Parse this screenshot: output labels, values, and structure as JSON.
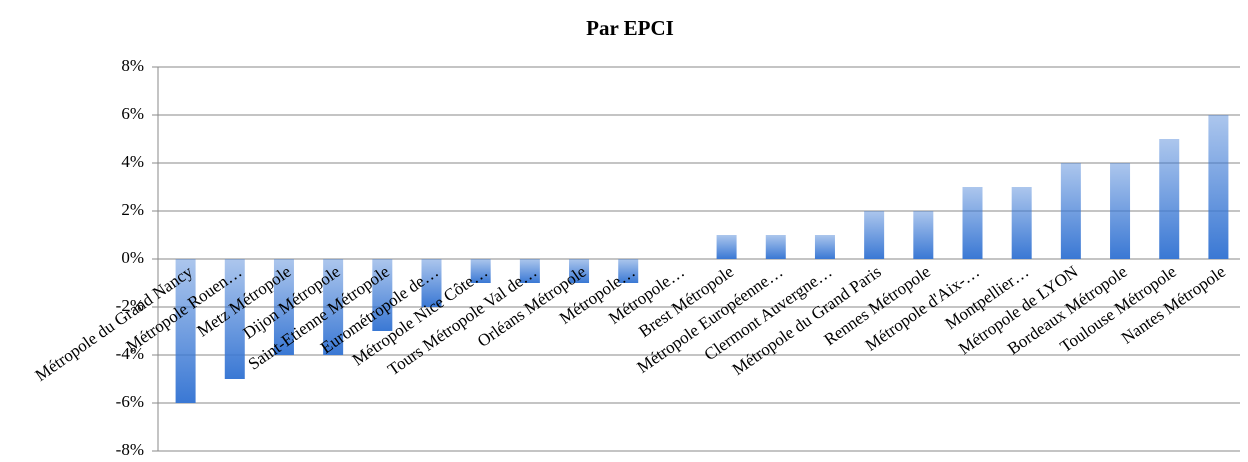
{
  "chart_data": {
    "type": "bar",
    "title": "Par EPCI",
    "categories": [
      "Métropole du Grand Nancy",
      "Métropole Rouen…",
      "Metz Métropole",
      "Dijon Métropole",
      "Saint-Etienne Métropole",
      "Eurométropole de…",
      "Métropole Nice Côte…",
      "Tours Métropole Val de…",
      "Orléans Métropole",
      "Métropole…",
      "Métropole…",
      "Brest Métropole",
      "Métropole Européenne…",
      "Clermont Auvergne…",
      "Métropole du Grand Paris",
      "Rennes Métropole",
      "Métropole d'Aix-…",
      "Montpellier…",
      "Métropole de LYON",
      "Bordeaux Métropole",
      "Toulouse Métropole",
      "Nantes Métropole"
    ],
    "values": [
      -6,
      -5,
      -4,
      -4,
      -3,
      -2,
      -1,
      -1,
      -1,
      -1,
      0,
      1,
      1,
      1,
      2,
      2,
      3,
      3,
      4,
      4,
      5,
      6
    ],
    "color": "#3a78d4",
    "ylim": [
      -8,
      8
    ],
    "yticks": [
      {
        "value": -8,
        "label": "-8%"
      },
      {
        "value": -6,
        "label": "-6%"
      },
      {
        "value": -4,
        "label": "-4%"
      },
      {
        "value": -2,
        "label": "-2%"
      },
      {
        "value": 0,
        "label": "0%"
      },
      {
        "value": 2,
        "label": "2%"
      },
      {
        "value": 4,
        "label": "4%"
      },
      {
        "value": 6,
        "label": "6%"
      },
      {
        "value": 8,
        "label": "8%"
      }
    ],
    "grid": true
  }
}
